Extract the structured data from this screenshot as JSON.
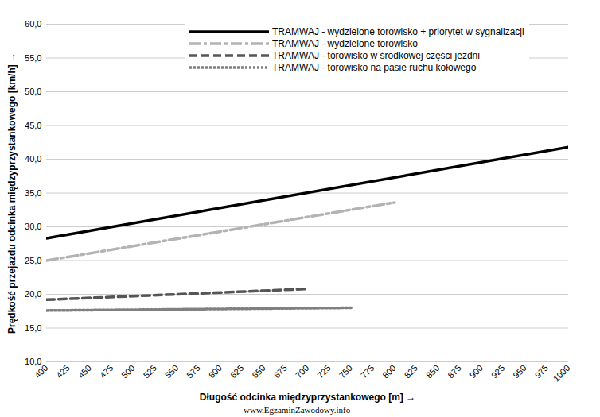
{
  "chart_data": {
    "type": "line",
    "x_label": "Długość odcinka międzyprzystankowego [m]",
    "y_label": "Prędkość przejazdu odcinka międzyprzystankowego [km/h]",
    "xlim": [
      400,
      1000
    ],
    "xticks": [
      400,
      425,
      450,
      475,
      500,
      525,
      550,
      575,
      600,
      625,
      650,
      675,
      700,
      725,
      750,
      775,
      800,
      825,
      850,
      875,
      900,
      925,
      950,
      975,
      1000
    ],
    "ylim": [
      10,
      60
    ],
    "yticks": [
      {
        "value": 10,
        "label": "10,0"
      },
      {
        "value": 15,
        "label": "15,0"
      },
      {
        "value": 20,
        "label": "20,0"
      },
      {
        "value": 25,
        "label": "25,0"
      },
      {
        "value": 30,
        "label": "30,0"
      },
      {
        "value": 35,
        "label": "35,0"
      },
      {
        "value": 40,
        "label": "40,0"
      },
      {
        "value": 45,
        "label": "45,0"
      },
      {
        "value": 50,
        "label": "50,0"
      },
      {
        "value": 55,
        "label": "55,0"
      },
      {
        "value": 60,
        "label": "60,0"
      }
    ],
    "grid": "y",
    "legend": "top",
    "series": [
      {
        "name": "TRAMWAJ - wydzielone torowisko + priorytet w sygnalizacji",
        "color": "#000000",
        "line_style": "solid",
        "x": [
          400,
          1000
        ],
        "values": [
          28.3,
          41.8
        ]
      },
      {
        "name": "TRAMWAJ - wydzielone torowisko",
        "color": "#b3b3b3",
        "line_style": "dashdot",
        "x": [
          400,
          800
        ],
        "values": [
          25.0,
          33.6
        ]
      },
      {
        "name": "TRAMWAJ - torowisko w środkowej części jezdni",
        "color": "#555555",
        "line_style": "dashed",
        "x": [
          400,
          700
        ],
        "values": [
          19.2,
          20.8
        ]
      },
      {
        "name": "TRAMWAJ - torowisko na pasie ruchu kołowego",
        "color": "#808080",
        "line_style": "dotted",
        "x": [
          400,
          750
        ],
        "values": [
          17.6,
          18.0
        ]
      }
    ],
    "annotations": [
      "www.EgzaminZawodowy.info"
    ]
  }
}
